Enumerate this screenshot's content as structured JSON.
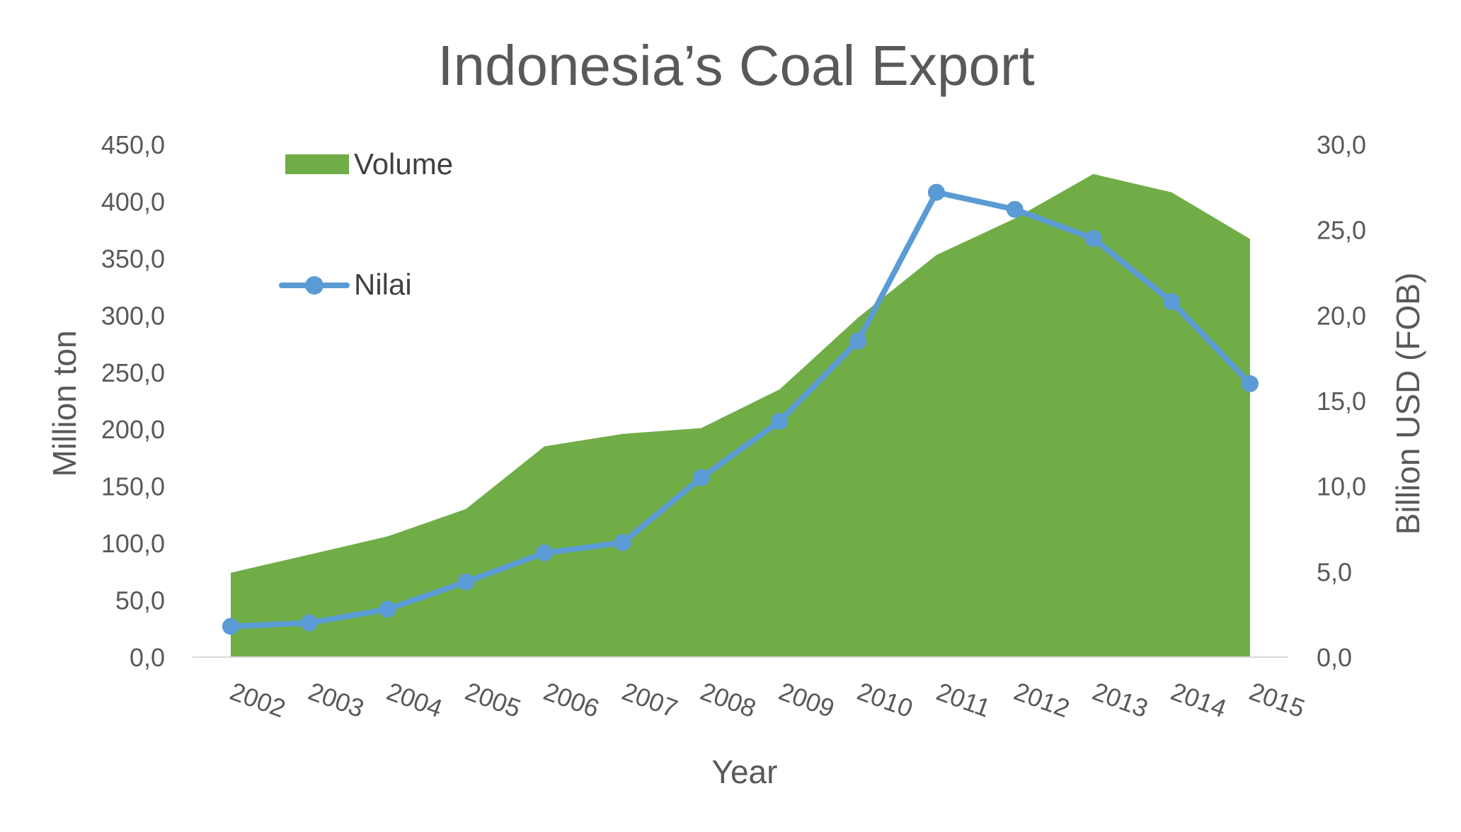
{
  "chart_data": {
    "type": "area",
    "title": "Indonesia’s Coal Export",
    "xlabel": "Year",
    "ylabel_left": "Million ton",
    "ylabel_right": "Billion USD (FOB)",
    "categories": [
      "2002",
      "2003",
      "2004",
      "2005",
      "2006",
      "2007",
      "2008",
      "2009",
      "2010",
      "2011",
      "2012",
      "2013",
      "2014",
      "2015"
    ],
    "ylim_left": [
      0,
      450
    ],
    "yticks_left": [
      "0,0",
      "50,0",
      "100,0",
      "150,0",
      "200,0",
      "250,0",
      "300,0",
      "350,0",
      "400,0",
      "450,0"
    ],
    "ylim_right": [
      0,
      30
    ],
    "yticks_right": [
      "0,0",
      "5,0",
      "10,0",
      "15,0",
      "20,0",
      "25,0",
      "30,0"
    ],
    "grid": false,
    "legend_position": "top-left",
    "series": [
      {
        "name": "Volume",
        "type": "area",
        "axis": "left",
        "color": "#70ad47",
        "values": [
          74,
          90,
          106,
          130,
          185,
          196,
          201,
          235,
          298,
          353,
          385,
          424,
          408,
          367
        ]
      },
      {
        "name": "Nilai",
        "type": "line",
        "axis": "right",
        "color": "#5b9bd5",
        "values": [
          1.8,
          2.0,
          2.8,
          4.4,
          6.1,
          6.7,
          10.5,
          13.8,
          18.5,
          27.2,
          26.2,
          24.5,
          20.8,
          16.0
        ]
      }
    ]
  }
}
